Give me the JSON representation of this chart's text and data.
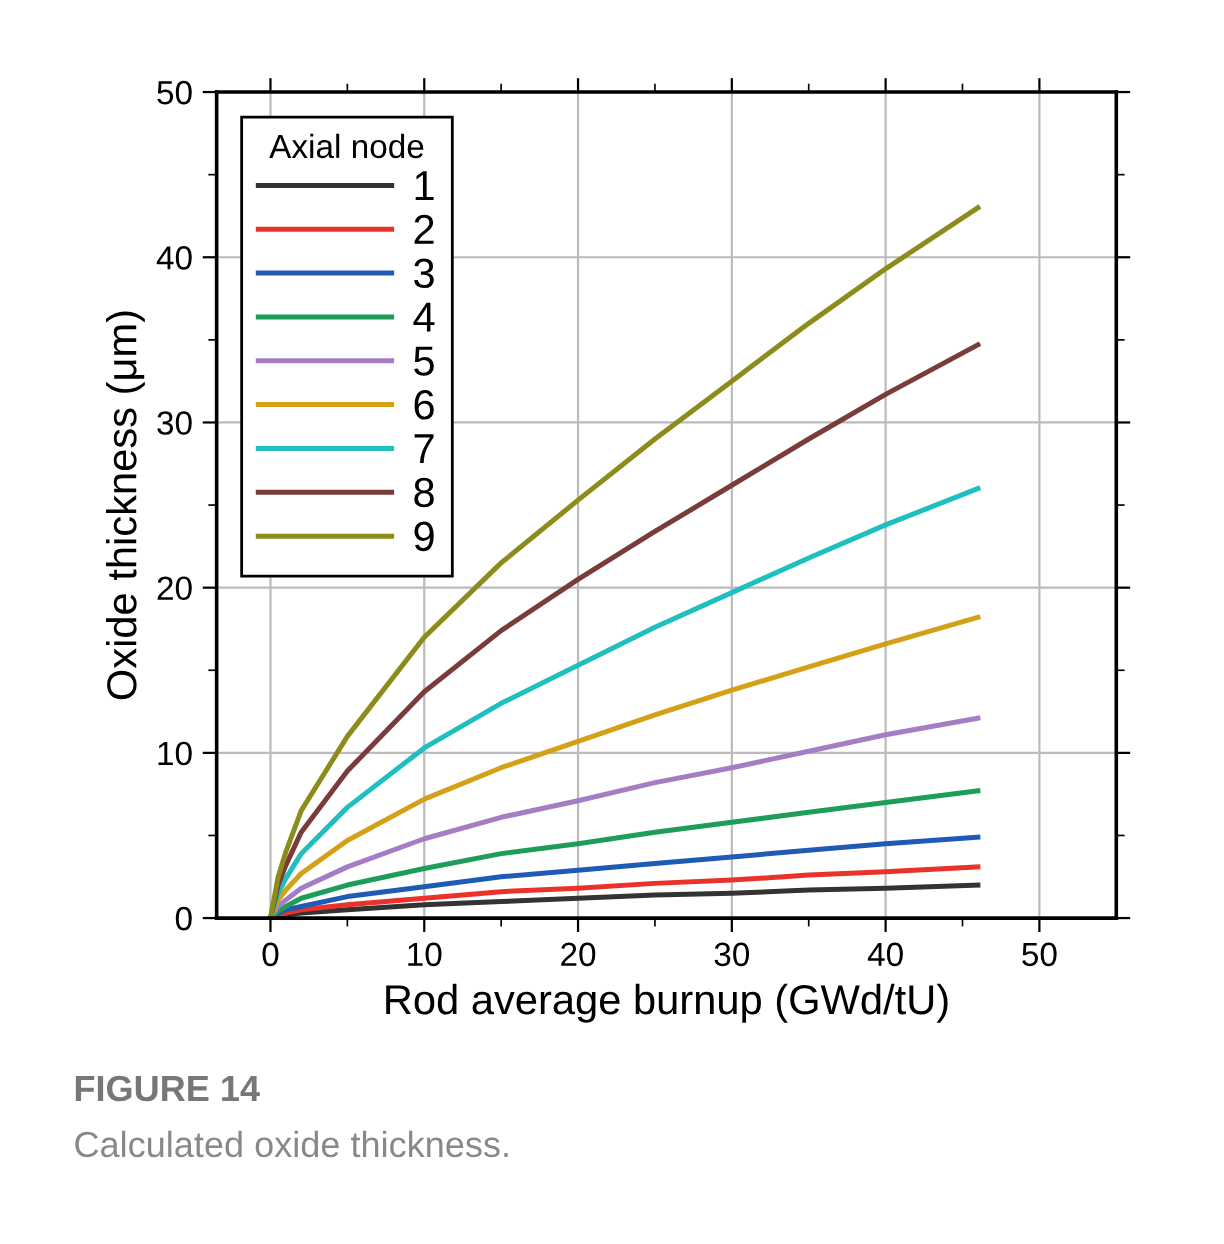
{
  "chart_data": {
    "type": "line",
    "xlabel": "Rod average burnup (GWd/tU)",
    "ylabel": "Oxide thickness (μm)",
    "legend_title": "Axial node",
    "x": [
      0,
      0.5,
      1,
      2,
      5,
      10,
      15,
      20,
      25,
      30,
      35,
      40,
      46
    ],
    "series": [
      {
        "name": "1",
        "color": "#333333",
        "values": [
          0,
          0.1,
          0.2,
          0.3,
          0.5,
          0.8,
          1.0,
          1.2,
          1.4,
          1.5,
          1.7,
          1.8,
          2.0
        ]
      },
      {
        "name": "2",
        "color": "#e8322a",
        "values": [
          0,
          0.2,
          0.3,
          0.5,
          0.8,
          1.2,
          1.6,
          1.8,
          2.1,
          2.3,
          2.6,
          2.8,
          3.1
        ]
      },
      {
        "name": "3",
        "color": "#1f5bb5",
        "values": [
          0,
          0.3,
          0.5,
          0.7,
          1.3,
          1.9,
          2.5,
          2.9,
          3.3,
          3.7,
          4.1,
          4.5,
          4.9
        ]
      },
      {
        "name": "4",
        "color": "#1e9c5a",
        "values": [
          0,
          0.4,
          0.7,
          1.2,
          2.0,
          3.0,
          3.9,
          4.5,
          5.2,
          5.8,
          6.4,
          7.0,
          7.7
        ]
      },
      {
        "name": "5",
        "color": "#a67cc4",
        "values": [
          0,
          0.7,
          1.1,
          1.8,
          3.1,
          4.8,
          6.1,
          7.1,
          8.2,
          9.1,
          10.1,
          11.1,
          12.1
        ]
      },
      {
        "name": "6",
        "color": "#d4a017",
        "values": [
          0,
          1.1,
          1.7,
          2.7,
          4.7,
          7.2,
          9.1,
          10.7,
          12.3,
          13.8,
          15.2,
          16.6,
          18.2
        ]
      },
      {
        "name": "7",
        "color": "#1fbfbf",
        "values": [
          0,
          1.5,
          2.4,
          3.9,
          6.7,
          10.3,
          13.0,
          15.3,
          17.6,
          19.7,
          21.8,
          23.8,
          26.0
        ]
      },
      {
        "name": "8",
        "color": "#7a3b3b",
        "values": [
          0,
          2.0,
          3.2,
          5.2,
          8.9,
          13.7,
          17.4,
          20.5,
          23.4,
          26.2,
          29.0,
          31.7,
          34.7
        ]
      },
      {
        "name": "9",
        "color": "#8c8c1a",
        "values": [
          0,
          2.5,
          4.0,
          6.5,
          11.0,
          17.0,
          21.5,
          25.3,
          29.0,
          32.5,
          36.0,
          39.3,
          43.0
        ]
      }
    ],
    "xlim": [
      -3.5,
      55
    ],
    "xticks": [
      0,
      {
        "value": 5,
        "label": null
      },
      10,
      {
        "value": 15,
        "label": null
      },
      20,
      {
        "value": 25,
        "label": null
      },
      30,
      {
        "value": 35,
        "label": null
      },
      40,
      {
        "value": 45,
        "label": null
      },
      50
    ],
    "ylim": [
      0,
      50
    ],
    "yticks": [
      0,
      {
        "value": 5,
        "label": null
      },
      10,
      {
        "value": 15,
        "label": null
      },
      20,
      {
        "value": 25,
        "label": null
      },
      30,
      {
        "value": 35,
        "label": null
      },
      40,
      {
        "value": 45,
        "label": null
      },
      50
    ],
    "grid": true,
    "legend": "top left",
    "line_style": "solid",
    "marker": "none",
    "annotations": [
      "FIGURE 14",
      "Calculated oxide thickness."
    ]
  }
}
